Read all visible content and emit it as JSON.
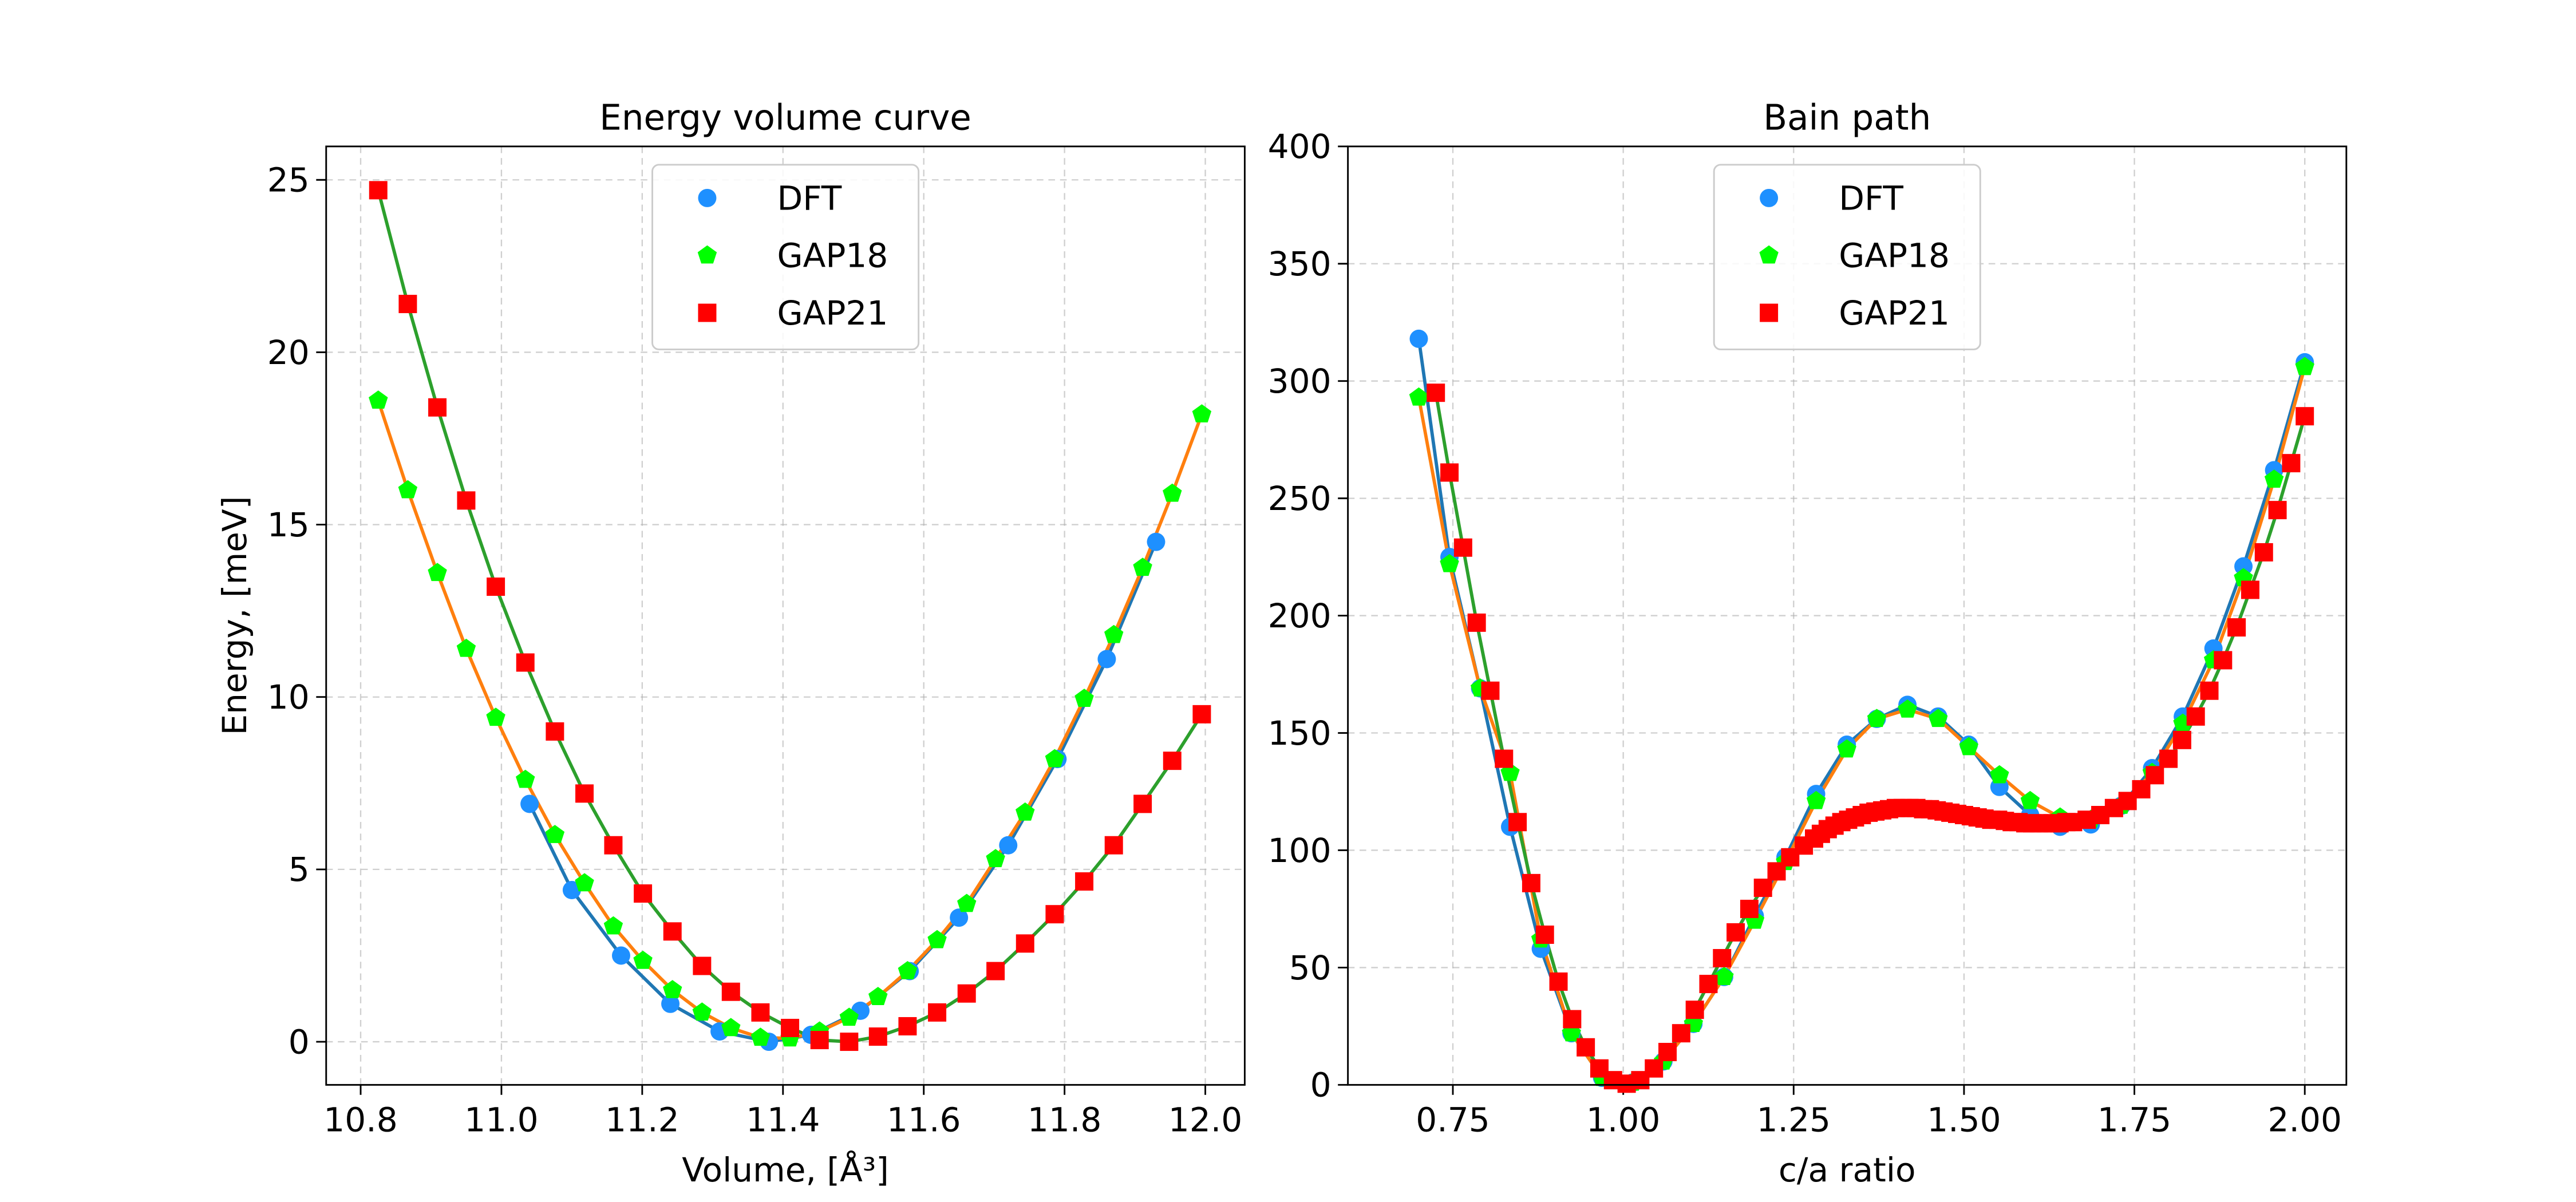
{
  "chart_data": [
    {
      "type": "line",
      "title": "Energy volume curve",
      "xlabel": "Volume, [Å³]",
      "ylabel": "Energy, [meV]",
      "xlim": [
        10.751,
        12.056
      ],
      "ylim": [
        -1.25,
        25.97
      ],
      "xticks": [
        10.8,
        {
          "value": 11,
          "label": "11.0"
        },
        11.2,
        11.4,
        11.6,
        11.8,
        {
          "value": 12,
          "label": "12.0"
        }
      ],
      "yticks": [
        0,
        5,
        10,
        15,
        20,
        25
      ],
      "grid": true,
      "legend": "upper center",
      "series": [
        {
          "name": "DFT",
          "color": "#1f77b4",
          "marker": "circle",
          "marker_color": "#1e90ff",
          "x": [
            11.04,
            11.1,
            11.17,
            11.24,
            11.31,
            11.38,
            11.44,
            11.51,
            11.58,
            11.65,
            11.72,
            11.79,
            11.86,
            11.93
          ],
          "values": [
            6.9,
            4.4,
            2.5,
            1.1,
            0.3,
            0.0,
            0.2,
            0.9,
            2.05,
            3.6,
            5.7,
            8.2,
            11.1,
            14.5
          ]
        },
        {
          "name": "GAP18",
          "color": "#ff7f0e",
          "marker": "pentagon",
          "marker_color": "#00ff00",
          "x": [
            10.825,
            10.867,
            10.909,
            10.95,
            10.992,
            11.034,
            11.076,
            11.118,
            11.159,
            11.201,
            11.243,
            11.285,
            11.326,
            11.368,
            11.41,
            11.452,
            11.494,
            11.535,
            11.577,
            11.619,
            11.661,
            11.702,
            11.744,
            11.786,
            11.828,
            11.87,
            11.911,
            11.953,
            11.995
          ],
          "values": [
            18.6,
            16.0,
            13.6,
            11.4,
            9.4,
            7.6,
            6.0,
            4.6,
            3.35,
            2.35,
            1.5,
            0.85,
            0.4,
            0.12,
            0.1,
            0.3,
            0.7,
            1.3,
            2.05,
            2.95,
            4.0,
            5.3,
            6.65,
            8.2,
            9.95,
            11.8,
            13.75,
            15.9,
            18.2
          ]
        },
        {
          "name": "GAP21",
          "color": "#2ca02c",
          "marker": "square",
          "marker_color": "#ff0000",
          "x": [
            10.825,
            10.867,
            10.909,
            10.95,
            10.992,
            11.034,
            11.076,
            11.118,
            11.159,
            11.201,
            11.243,
            11.285,
            11.326,
            11.368,
            11.41,
            11.452,
            11.494,
            11.535,
            11.577,
            11.619,
            11.661,
            11.702,
            11.744,
            11.786,
            11.828,
            11.87,
            11.911,
            11.953,
            11.995
          ],
          "values": [
            24.7,
            21.4,
            18.4,
            15.7,
            13.2,
            11.0,
            9.0,
            7.2,
            5.7,
            4.3,
            3.2,
            2.2,
            1.45,
            0.85,
            0.4,
            0.05,
            0.0,
            0.15,
            0.45,
            0.85,
            1.4,
            2.05,
            2.85,
            3.7,
            4.65,
            5.7,
            6.9,
            8.15,
            9.5
          ]
        }
      ]
    },
    {
      "type": "line",
      "title": "Bain path",
      "xlabel": "c/a ratio",
      "xlim": [
        0.596,
        2.061
      ],
      "ylim": [
        0,
        400
      ],
      "xticks": [
        0.75,
        {
          "value": 1,
          "label": "1.00"
        },
        1.25,
        {
          "value": 1.5,
          "label": "1.50"
        },
        1.75,
        {
          "value": 2,
          "label": "2.00"
        }
      ],
      "yticks": [
        0,
        50,
        100,
        150,
        200,
        250,
        300,
        350,
        400
      ],
      "grid": true,
      "legend": "upper center",
      "series": [
        {
          "name": "DFT",
          "color": "#1f77b4",
          "marker": "circle",
          "marker_color": "#1e90ff",
          "x": [
            0.7,
            0.745,
            0.79,
            0.834,
            0.879,
            0.924,
            0.969,
            1.014,
            1.059,
            1.103,
            1.148,
            1.193,
            1.238,
            1.283,
            1.328,
            1.372,
            1.417,
            1.462,
            1.507,
            1.552,
            1.597,
            1.641,
            1.686,
            1.731,
            1.776,
            1.821,
            1.866,
            1.91,
            1.955,
            2.0
          ],
          "values": [
            318,
            225,
            169,
            110,
            58,
            22,
            3,
            1,
            10,
            26,
            46,
            72,
            97,
            124,
            145,
            156,
            162,
            157,
            145,
            127,
            115,
            110,
            111,
            119,
            135,
            157,
            186,
            221,
            262,
            308
          ]
        },
        {
          "name": "GAP18",
          "color": "#ff7f0e",
          "marker": "pentagon",
          "marker_color": "#00ff00",
          "x": [
            0.7,
            0.745,
            0.79,
            0.834,
            0.879,
            0.924,
            0.969,
            1.014,
            1.059,
            1.103,
            1.148,
            1.193,
            1.238,
            1.283,
            1.328,
            1.372,
            1.417,
            1.462,
            1.507,
            1.552,
            1.597,
            1.641,
            1.686,
            1.731,
            1.776,
            1.821,
            1.866,
            1.91,
            1.955,
            2.0
          ],
          "values": [
            293,
            222,
            169,
            133,
            62,
            22,
            3,
            1,
            10,
            26,
            46,
            70,
            95,
            121,
            143,
            156,
            160,
            156,
            144,
            132,
            121,
            114,
            113,
            119,
            133,
            154,
            181,
            216,
            258,
            306
          ]
        },
        {
          "name": "GAP21",
          "color": "#2ca02c",
          "marker": "square",
          "marker_color": "#ff0000",
          "x": [
            0.725,
            0.745,
            0.765,
            0.785,
            0.805,
            0.825,
            0.845,
            0.865,
            0.885,
            0.905,
            0.925,
            0.945,
            0.965,
            0.985,
            1.005,
            1.025,
            1.045,
            1.065,
            1.085,
            1.105,
            1.125,
            1.145,
            1.165,
            1.185,
            1.205,
            1.225,
            1.245,
            1.265,
            1.28,
            1.29,
            1.3,
            1.31,
            1.32,
            1.33,
            1.34,
            1.35,
            1.36,
            1.37,
            1.38,
            1.39,
            1.4,
            1.41,
            1.42,
            1.43,
            1.44,
            1.45,
            1.46,
            1.47,
            1.48,
            1.49,
            1.5,
            1.51,
            1.52,
            1.53,
            1.54,
            1.55,
            1.56,
            1.57,
            1.58,
            1.59,
            1.6,
            1.61,
            1.62,
            1.63,
            1.64,
            1.65,
            1.66,
            1.68,
            1.7,
            1.72,
            1.74,
            1.76,
            1.78,
            1.8,
            1.82,
            1.84,
            1.86,
            1.88,
            1.9,
            1.92,
            1.94,
            1.96,
            1.98,
            2.0
          ],
          "values": [
            295,
            261,
            229,
            197,
            168,
            139,
            112,
            86,
            64,
            44,
            28,
            16,
            7,
            2,
            0.5,
            2,
            7,
            14,
            22,
            32,
            43,
            54,
            65,
            75,
            84,
            91,
            97,
            102,
            105,
            107,
            109,
            110.5,
            112,
            113,
            114,
            115,
            116,
            116.5,
            117,
            117.5,
            118,
            118,
            118,
            118,
            117.5,
            117.5,
            117,
            116.5,
            116,
            115.5,
            115,
            114.5,
            114,
            113.5,
            113,
            113,
            112.5,
            112,
            112,
            111.5,
            111.5,
            111.5,
            111.5,
            111.5,
            111.5,
            112,
            112,
            113,
            115,
            118,
            121,
            126,
            132,
            139,
            147,
            157,
            168,
            181,
            195,
            211,
            227,
            245,
            265,
            285
          ]
        }
      ]
    }
  ]
}
